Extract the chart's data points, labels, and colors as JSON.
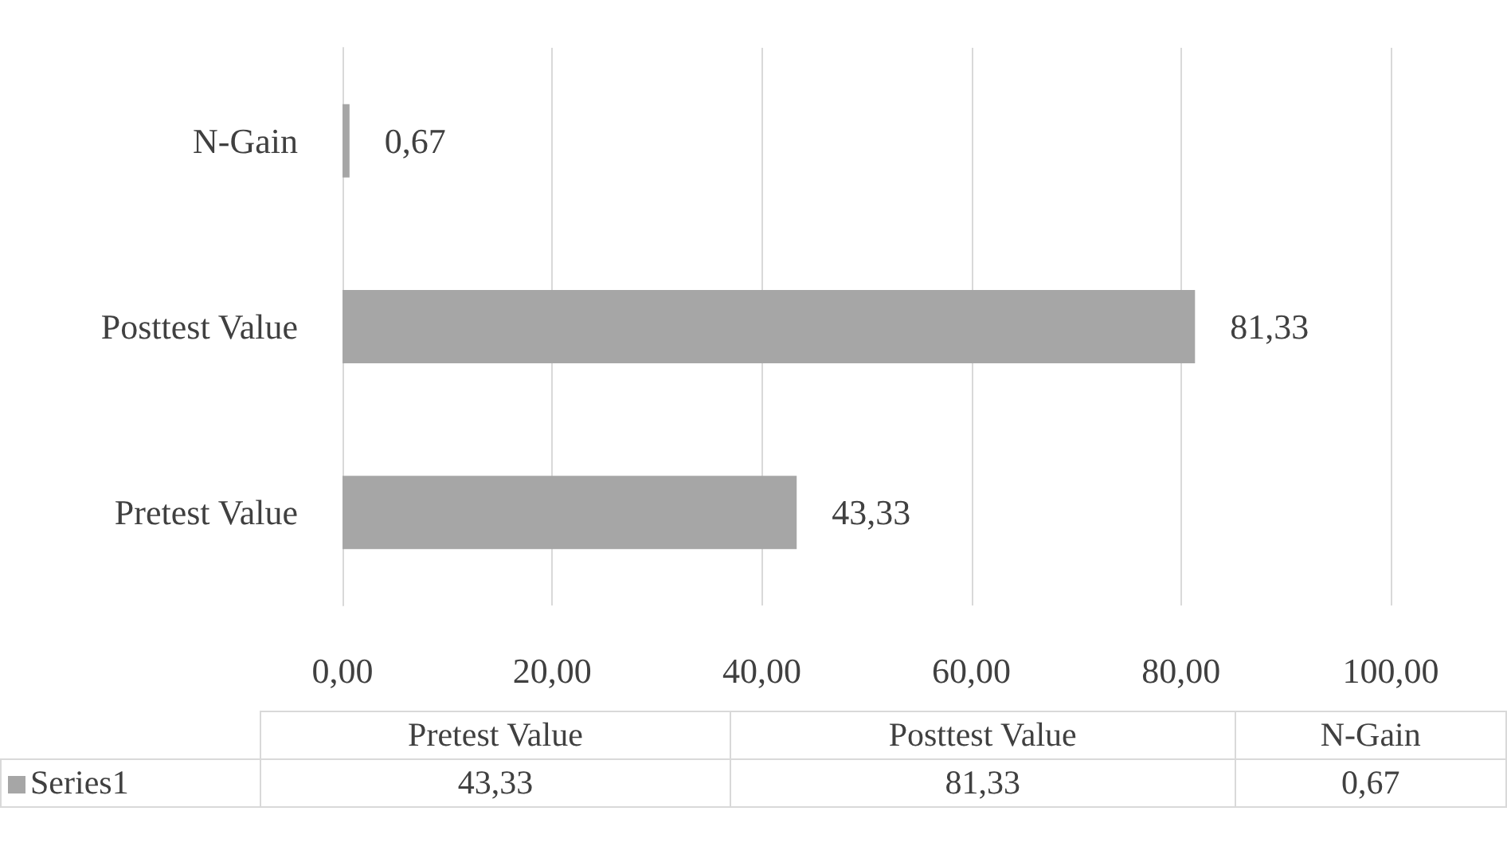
{
  "chart_data": {
    "type": "bar",
    "orientation": "horizontal",
    "categories": [
      "N-Gain",
      "Posttest Value",
      "Pretest Value"
    ],
    "series": [
      {
        "name": "Series1",
        "color": "#a6a6a6",
        "values": [
          0.67,
          81.33,
          43.33
        ],
        "value_labels": [
          "0,67",
          "81,33",
          "43,33"
        ]
      }
    ],
    "xlim": [
      0,
      100
    ],
    "xticks": [
      {
        "value": 0,
        "label": "0,00"
      },
      {
        "value": 20,
        "label": "20,00"
      },
      {
        "value": 40,
        "label": "40,00"
      },
      {
        "value": 60,
        "label": "60,00"
      },
      {
        "value": 80,
        "label": "80,00"
      },
      {
        "value": 100,
        "label": "100,00"
      }
    ],
    "grid": "x",
    "legend": "bottom"
  }
}
